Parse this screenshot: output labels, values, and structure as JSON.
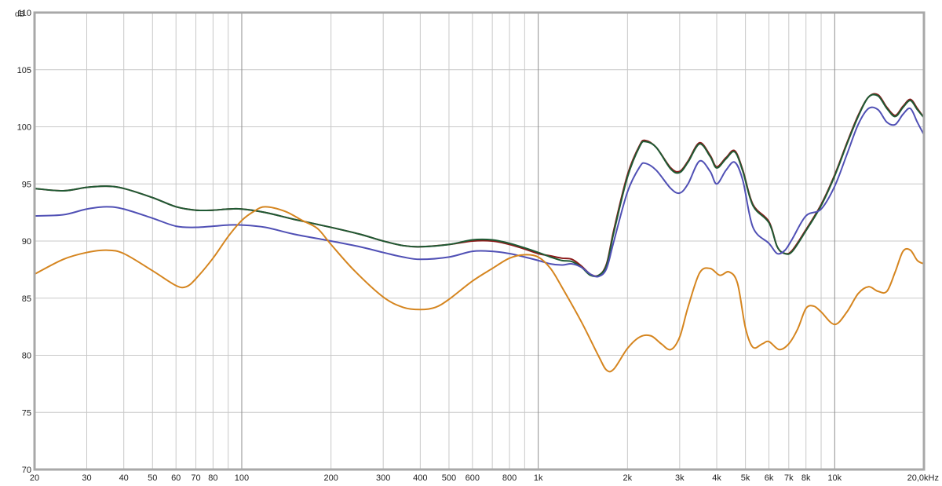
{
  "chart_data": {
    "type": "line",
    "title": "",
    "xlabel": "",
    "ylabel": "",
    "x_scale": "log",
    "y_unit": "dB",
    "grid": true,
    "xlim": [
      20,
      20000
    ],
    "ylim": [
      70,
      110
    ],
    "x_ticks": [
      {
        "value": 20,
        "label": "20",
        "major": false
      },
      {
        "value": 30,
        "label": "30",
        "major": false
      },
      {
        "value": 40,
        "label": "40",
        "major": false
      },
      {
        "value": 50,
        "label": "50",
        "major": false
      },
      {
        "value": 60,
        "label": "60",
        "major": false
      },
      {
        "value": 70,
        "label": "70",
        "major": false
      },
      {
        "value": 80,
        "label": "80",
        "major": false
      },
      {
        "value": 90,
        "label": "",
        "major": false
      },
      {
        "value": 100,
        "label": "100",
        "major": true
      },
      {
        "value": 200,
        "label": "200",
        "major": false
      },
      {
        "value": 300,
        "label": "300",
        "major": false
      },
      {
        "value": 400,
        "label": "400",
        "major": false
      },
      {
        "value": 500,
        "label": "500",
        "major": false
      },
      {
        "value": 600,
        "label": "600",
        "major": false
      },
      {
        "value": 700,
        "label": "",
        "major": false
      },
      {
        "value": 800,
        "label": "800",
        "major": false
      },
      {
        "value": 900,
        "label": "",
        "major": false
      },
      {
        "value": 1000,
        "label": "1k",
        "major": true
      },
      {
        "value": 2000,
        "label": "2k",
        "major": false
      },
      {
        "value": 3000,
        "label": "3k",
        "major": false
      },
      {
        "value": 4000,
        "label": "4k",
        "major": false
      },
      {
        "value": 5000,
        "label": "5k",
        "major": false
      },
      {
        "value": 6000,
        "label": "6k",
        "major": false
      },
      {
        "value": 7000,
        "label": "7k",
        "major": false
      },
      {
        "value": 8000,
        "label": "8k",
        "major": false
      },
      {
        "value": 9000,
        "label": "",
        "major": false
      },
      {
        "value": 10000,
        "label": "10k",
        "major": true
      },
      {
        "value": 20000,
        "label": "20,0kHz",
        "major": false
      }
    ],
    "y_ticks": [
      {
        "value": 70,
        "label": "70"
      },
      {
        "value": 75,
        "label": "75"
      },
      {
        "value": 80,
        "label": "80"
      },
      {
        "value": 85,
        "label": "85"
      },
      {
        "value": 90,
        "label": "90"
      },
      {
        "value": 95,
        "label": "95"
      },
      {
        "value": 100,
        "label": "100"
      },
      {
        "value": 105,
        "label": "105"
      },
      {
        "value": 110,
        "label": "110"
      }
    ],
    "series": [
      {
        "color": "#8b1a1a",
        "points": [
          [
            20,
            94.6
          ],
          [
            25,
            94.4
          ],
          [
            30,
            94.7
          ],
          [
            35,
            94.8
          ],
          [
            40,
            94.6
          ],
          [
            50,
            93.8
          ],
          [
            60,
            93.0
          ],
          [
            70,
            92.7
          ],
          [
            80,
            92.7
          ],
          [
            90,
            92.8
          ],
          [
            100,
            92.8
          ],
          [
            120,
            92.5
          ],
          [
            150,
            91.9
          ],
          [
            200,
            91.2
          ],
          [
            250,
            90.6
          ],
          [
            300,
            90.0
          ],
          [
            350,
            89.6
          ],
          [
            400,
            89.5
          ],
          [
            500,
            89.7
          ],
          [
            600,
            90.0
          ],
          [
            700,
            90.0
          ],
          [
            800,
            89.7
          ],
          [
            900,
            89.3
          ],
          [
            1000,
            88.9
          ],
          [
            1100,
            88.7
          ],
          [
            1200,
            88.5
          ],
          [
            1300,
            88.4
          ],
          [
            1400,
            87.8
          ],
          [
            1500,
            87.1
          ],
          [
            1600,
            87.0
          ],
          [
            1700,
            88.0
          ],
          [
            1800,
            91.0
          ],
          [
            2000,
            95.8
          ],
          [
            2200,
            98.4
          ],
          [
            2300,
            98.8
          ],
          [
            2500,
            98.2
          ],
          [
            2800,
            96.4
          ],
          [
            3000,
            96.1
          ],
          [
            3200,
            97.0
          ],
          [
            3500,
            98.6
          ],
          [
            3800,
            97.5
          ],
          [
            4000,
            96.5
          ],
          [
            4300,
            97.3
          ],
          [
            4600,
            97.9
          ],
          [
            4900,
            96.2
          ],
          [
            5300,
            93.2
          ],
          [
            6000,
            91.7
          ],
          [
            6400,
            89.5
          ],
          [
            6800,
            88.9
          ],
          [
            7200,
            89.2
          ],
          [
            8000,
            91.0
          ],
          [
            9000,
            93.2
          ],
          [
            10000,
            95.8
          ],
          [
            11000,
            98.6
          ],
          [
            12000,
            101.0
          ],
          [
            13000,
            102.6
          ],
          [
            14000,
            102.8
          ],
          [
            15000,
            101.7
          ],
          [
            16000,
            101.0
          ],
          [
            17000,
            101.8
          ],
          [
            18000,
            102.4
          ],
          [
            19000,
            101.6
          ],
          [
            20000,
            100.8
          ]
        ]
      },
      {
        "color": "#1f5a34",
        "points": [
          [
            20,
            94.6
          ],
          [
            25,
            94.4
          ],
          [
            30,
            94.7
          ],
          [
            35,
            94.8
          ],
          [
            40,
            94.6
          ],
          [
            50,
            93.8
          ],
          [
            60,
            93.0
          ],
          [
            70,
            92.7
          ],
          [
            80,
            92.7
          ],
          [
            90,
            92.8
          ],
          [
            100,
            92.8
          ],
          [
            120,
            92.5
          ],
          [
            150,
            91.9
          ],
          [
            200,
            91.2
          ],
          [
            250,
            90.6
          ],
          [
            300,
            90.0
          ],
          [
            350,
            89.6
          ],
          [
            400,
            89.5
          ],
          [
            500,
            89.7
          ],
          [
            600,
            90.1
          ],
          [
            700,
            90.1
          ],
          [
            800,
            89.8
          ],
          [
            900,
            89.4
          ],
          [
            1000,
            89.0
          ],
          [
            1100,
            88.6
          ],
          [
            1200,
            88.3
          ],
          [
            1300,
            88.2
          ],
          [
            1400,
            87.7
          ],
          [
            1500,
            87.0
          ],
          [
            1600,
            87.0
          ],
          [
            1700,
            87.9
          ],
          [
            1800,
            90.8
          ],
          [
            2000,
            95.6
          ],
          [
            2200,
            98.3
          ],
          [
            2300,
            98.7
          ],
          [
            2500,
            98.2
          ],
          [
            2800,
            96.3
          ],
          [
            3000,
            96.0
          ],
          [
            3200,
            96.9
          ],
          [
            3500,
            98.5
          ],
          [
            3800,
            97.4
          ],
          [
            4000,
            96.4
          ],
          [
            4300,
            97.2
          ],
          [
            4600,
            97.8
          ],
          [
            4900,
            96.1
          ],
          [
            5300,
            93.1
          ],
          [
            6000,
            91.6
          ],
          [
            6400,
            89.5
          ],
          [
            6800,
            88.9
          ],
          [
            7200,
            89.1
          ],
          [
            8000,
            90.9
          ],
          [
            9000,
            93.1
          ],
          [
            10000,
            95.7
          ],
          [
            11000,
            98.5
          ],
          [
            12000,
            100.9
          ],
          [
            13000,
            102.6
          ],
          [
            14000,
            102.7
          ],
          [
            15000,
            101.6
          ],
          [
            16000,
            100.9
          ],
          [
            17000,
            101.7
          ],
          [
            18000,
            102.3
          ],
          [
            19000,
            101.5
          ],
          [
            20000,
            100.8
          ]
        ]
      },
      {
        "color": "#5050b5",
        "points": [
          [
            20,
            92.2
          ],
          [
            25,
            92.3
          ],
          [
            30,
            92.8
          ],
          [
            35,
            93.0
          ],
          [
            40,
            92.8
          ],
          [
            50,
            92.0
          ],
          [
            60,
            91.3
          ],
          [
            70,
            91.2
          ],
          [
            80,
            91.3
          ],
          [
            90,
            91.4
          ],
          [
            100,
            91.4
          ],
          [
            120,
            91.2
          ],
          [
            150,
            90.6
          ],
          [
            200,
            90.0
          ],
          [
            250,
            89.5
          ],
          [
            300,
            89.0
          ],
          [
            350,
            88.6
          ],
          [
            400,
            88.4
          ],
          [
            500,
            88.6
          ],
          [
            600,
            89.1
          ],
          [
            700,
            89.1
          ],
          [
            800,
            88.9
          ],
          [
            900,
            88.6
          ],
          [
            1000,
            88.3
          ],
          [
            1100,
            88.0
          ],
          [
            1200,
            87.9
          ],
          [
            1300,
            88.0
          ],
          [
            1400,
            87.7
          ],
          [
            1500,
            87.1
          ],
          [
            1600,
            86.9
          ],
          [
            1700,
            87.6
          ],
          [
            1800,
            90.0
          ],
          [
            2000,
            94.3
          ],
          [
            2200,
            96.5
          ],
          [
            2300,
            96.8
          ],
          [
            2500,
            96.2
          ],
          [
            2800,
            94.6
          ],
          [
            3000,
            94.2
          ],
          [
            3200,
            95.0
          ],
          [
            3500,
            97.0
          ],
          [
            3800,
            96.1
          ],
          [
            4000,
            95.0
          ],
          [
            4300,
            96.2
          ],
          [
            4600,
            96.9
          ],
          [
            4900,
            95.3
          ],
          [
            5300,
            91.2
          ],
          [
            6000,
            89.8
          ],
          [
            6400,
            88.9
          ],
          [
            6800,
            89.2
          ],
          [
            7200,
            90.2
          ],
          [
            8000,
            92.2
          ],
          [
            9000,
            92.8
          ],
          [
            10000,
            94.8
          ],
          [
            11000,
            97.6
          ],
          [
            12000,
            100.2
          ],
          [
            13000,
            101.6
          ],
          [
            14000,
            101.5
          ],
          [
            15000,
            100.4
          ],
          [
            16000,
            100.2
          ],
          [
            17000,
            101.1
          ],
          [
            18000,
            101.6
          ],
          [
            19000,
            100.4
          ],
          [
            20000,
            99.3
          ]
        ]
      },
      {
        "color": "#d5851f",
        "points": [
          [
            20,
            87.1
          ],
          [
            25,
            88.4
          ],
          [
            30,
            89.0
          ],
          [
            35,
            89.2
          ],
          [
            40,
            88.9
          ],
          [
            50,
            87.4
          ],
          [
            60,
            86.1
          ],
          [
            65,
            86.0
          ],
          [
            70,
            86.7
          ],
          [
            80,
            88.5
          ],
          [
            90,
            90.4
          ],
          [
            100,
            91.8
          ],
          [
            110,
            92.6
          ],
          [
            120,
            93.0
          ],
          [
            140,
            92.6
          ],
          [
            160,
            91.8
          ],
          [
            180,
            91.1
          ],
          [
            200,
            89.7
          ],
          [
            240,
            87.4
          ],
          [
            300,
            85.1
          ],
          [
            350,
            84.2
          ],
          [
            400,
            84.0
          ],
          [
            450,
            84.2
          ],
          [
            500,
            84.9
          ],
          [
            600,
            86.5
          ],
          [
            700,
            87.6
          ],
          [
            800,
            88.5
          ],
          [
            900,
            88.8
          ],
          [
            1000,
            88.6
          ],
          [
            1100,
            87.6
          ],
          [
            1200,
            86.0
          ],
          [
            1400,
            82.9
          ],
          [
            1600,
            79.9
          ],
          [
            1700,
            78.7
          ],
          [
            1800,
            78.8
          ],
          [
            2000,
            80.6
          ],
          [
            2200,
            81.6
          ],
          [
            2400,
            81.7
          ],
          [
            2600,
            81.0
          ],
          [
            2800,
            80.5
          ],
          [
            3000,
            81.6
          ],
          [
            3200,
            84.2
          ],
          [
            3500,
            87.2
          ],
          [
            3800,
            87.6
          ],
          [
            4100,
            87.0
          ],
          [
            4400,
            87.3
          ],
          [
            4700,
            86.3
          ],
          [
            5000,
            82.4
          ],
          [
            5300,
            80.7
          ],
          [
            5700,
            81.0
          ],
          [
            6000,
            81.2
          ],
          [
            6500,
            80.5
          ],
          [
            7000,
            81.0
          ],
          [
            7500,
            82.3
          ],
          [
            8000,
            84.1
          ],
          [
            8500,
            84.3
          ],
          [
            9000,
            83.8
          ],
          [
            10000,
            82.7
          ],
          [
            11000,
            83.8
          ],
          [
            12000,
            85.4
          ],
          [
            13000,
            86.0
          ],
          [
            14000,
            85.6
          ],
          [
            15000,
            85.6
          ],
          [
            16000,
            87.3
          ],
          [
            17000,
            89.1
          ],
          [
            18000,
            89.2
          ],
          [
            19000,
            88.3
          ],
          [
            20000,
            88.0
          ]
        ]
      }
    ]
  }
}
